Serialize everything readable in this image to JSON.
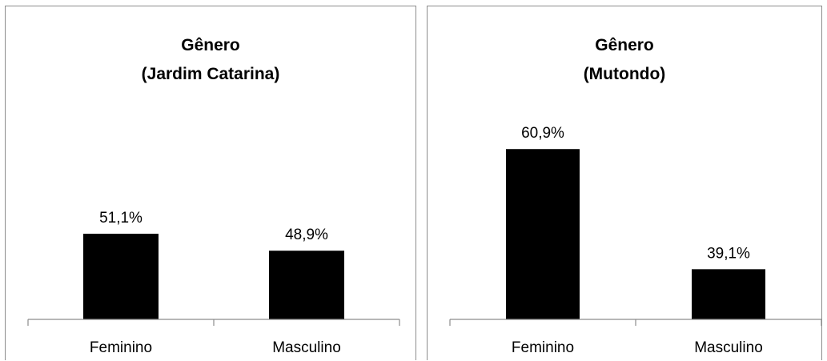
{
  "chart_data": [
    {
      "type": "bar",
      "title": [
        "Gênero",
        "(Jardim Catarina)"
      ],
      "categories": [
        "Feminino",
        "Masculino"
      ],
      "values": [
        51.1,
        48.9
      ],
      "value_labels": [
        "51,1%",
        "48,9%"
      ],
      "xlabel": "",
      "ylabel": "",
      "ylim": [
        40,
        65
      ],
      "grid": false,
      "legend": "none",
      "bar_color": "#000000"
    },
    {
      "type": "bar",
      "title": [
        "Gênero",
        "(Mutondo)"
      ],
      "categories": [
        "Feminino",
        "Masculino"
      ],
      "values": [
        60.9,
        39.1
      ],
      "value_labels": [
        "60,9%",
        "39,1%"
      ],
      "xlabel": "",
      "ylabel": "",
      "ylim": [
        30,
        65
      ],
      "grid": false,
      "legend": "none",
      "bar_color": "#000000"
    }
  ]
}
